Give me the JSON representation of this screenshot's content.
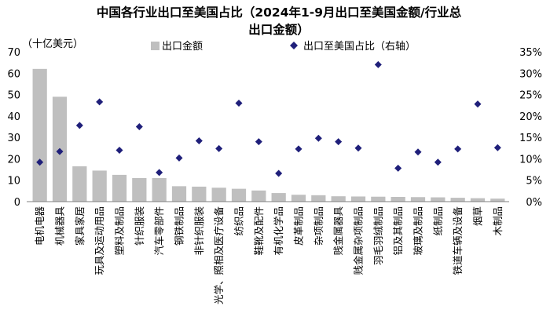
{
  "chart_data": {
    "type": "bar",
    "title_line1": "中国各行业出口至美国占比（2024年1-9月出口至美国金额/行业总",
    "title_line2": "出口金额）",
    "left_axis_unit": "（十亿美元）",
    "categories": [
      "电机电器",
      "机械器具",
      "家具家居",
      "玩具及运动用品",
      "塑料及制品",
      "针织服装",
      "汽车零部件",
      "钢铁制品",
      "非针织服装",
      "光学、照相及医疗设备",
      "纺织品",
      "鞋靴及配件",
      "有机化学品",
      "皮革制品",
      "杂项制品",
      "贱金属器具",
      "贱金属杂项制品",
      "羽毛羽绒制品",
      "铝及其制品",
      "玻璃及制品",
      "纸制品",
      "铁道车辆及设备",
      "烟草",
      "木制品"
    ],
    "series": [
      {
        "name": "出口金额",
        "axis": "left",
        "type": "bar",
        "color": "#bfbfbf",
        "values": [
          62,
          49,
          16.5,
          14.5,
          12.5,
          11,
          11,
          7.2,
          7,
          6.5,
          6,
          5.2,
          4,
          3.2,
          3,
          2.5,
          2.4,
          2.3,
          2.2,
          2.1,
          2,
          1.8,
          1.6,
          1.4
        ]
      },
      {
        "name": "出口至美国占比（右轴）",
        "axis": "right",
        "type": "scatter",
        "color": "#1f1f7a",
        "values": [
          9.2,
          11.7,
          17.8,
          23.3,
          12,
          17.5,
          6.8,
          10.2,
          14.2,
          12.4,
          23,
          14,
          6.6,
          12.3,
          14.8,
          14,
          12.5,
          32,
          7.8,
          11.6,
          9.2,
          12.3,
          22.8,
          12.6
        ]
      }
    ],
    "left_ticks": [
      "0",
      "10",
      "20",
      "30",
      "40",
      "50",
      "60",
      "70"
    ],
    "right_ticks": [
      "0%",
      "5%",
      "10%",
      "15%",
      "20%",
      "25%",
      "30%",
      "35%"
    ],
    "ylim_left": [
      0,
      70
    ],
    "ylim_right": [
      0,
      35
    ],
    "legend_position": "top"
  }
}
